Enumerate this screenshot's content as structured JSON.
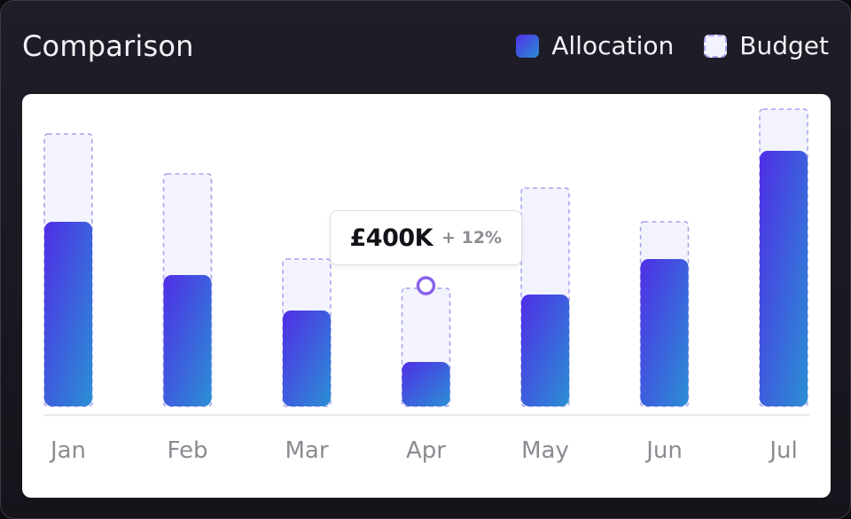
{
  "header": {
    "title": "Comparison",
    "legend": [
      {
        "label": "Allocation",
        "type": "allocation"
      },
      {
        "label": "Budget",
        "type": "budget"
      }
    ]
  },
  "tooltip": {
    "month": "Apr",
    "value": "£400K",
    "change": "+ 12%"
  },
  "colors": {
    "allocation_start": "#4f2ee6",
    "allocation_end": "#2b8fd4",
    "budget_fill": "#f2f3fd",
    "budget_border": "#a6a2ee",
    "marker": "#8a63ec"
  },
  "chart_data": {
    "type": "bar",
    "title": "Comparison",
    "xlabel": "",
    "ylabel": "",
    "categories": [
      "Jan",
      "Feb",
      "Mar",
      "Apr",
      "May",
      "Jun",
      "Jul"
    ],
    "series": [
      {
        "name": "Allocation",
        "values": [
          208,
          148,
          108,
          50,
          126,
          166,
          288
        ]
      },
      {
        "name": "Budget",
        "values": [
          307,
          262,
          166,
          133,
          246,
          208,
          335
        ]
      }
    ],
    "ylim": [
      0,
      340
    ],
    "grid": false,
    "legend_position": "top-right"
  }
}
